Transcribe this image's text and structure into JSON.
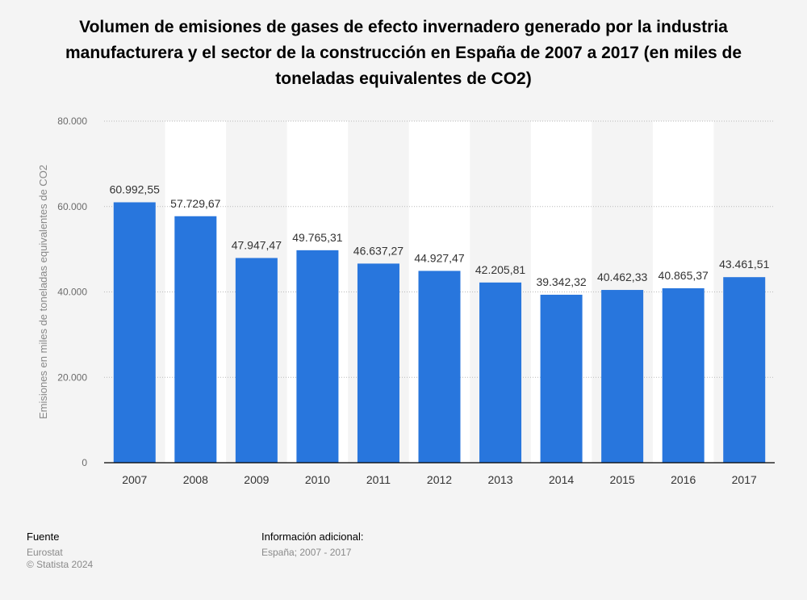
{
  "chart_data": {
    "type": "bar",
    "title": "Volumen de emisiones de gases de efecto invernadero generado por la industria\nmanufacturera y el sector de la construcción en España de 2007 a 2017 (en miles de\ntoneladas equivalentes de CO2)",
    "ylabel": "Emisiones en miles de toneladas equivalentes de CO2",
    "xlabel": "",
    "categories": [
      "2007",
      "2008",
      "2009",
      "2010",
      "2011",
      "2012",
      "2013",
      "2014",
      "2015",
      "2016",
      "2017"
    ],
    "values": [
      60992.55,
      57729.67,
      47947.47,
      49765.31,
      46637.27,
      44927.47,
      42205.81,
      39342.32,
      40462.33,
      40865.37,
      43461.51
    ],
    "value_labels": [
      "60.992,55",
      "57.729,67",
      "47.947,47",
      "49.765,31",
      "46.637,27",
      "44.927,47",
      "42.205,81",
      "39.342,32",
      "40.462,33",
      "40.865,37",
      "43.461,51"
    ],
    "ylim": [
      0,
      80000
    ],
    "yticks": [
      0,
      20000,
      40000,
      60000,
      80000
    ],
    "ytick_labels": [
      "0",
      "20.000",
      "40.000",
      "60.000",
      "80.000"
    ],
    "grid": true,
    "bar_color": "#2876dd"
  },
  "footer": {
    "source_heading": "Fuente",
    "source_name": "Eurostat",
    "copyright": "© Statista 2024",
    "info_heading": "Información adicional:",
    "info_text": "España; 2007 - 2017"
  }
}
